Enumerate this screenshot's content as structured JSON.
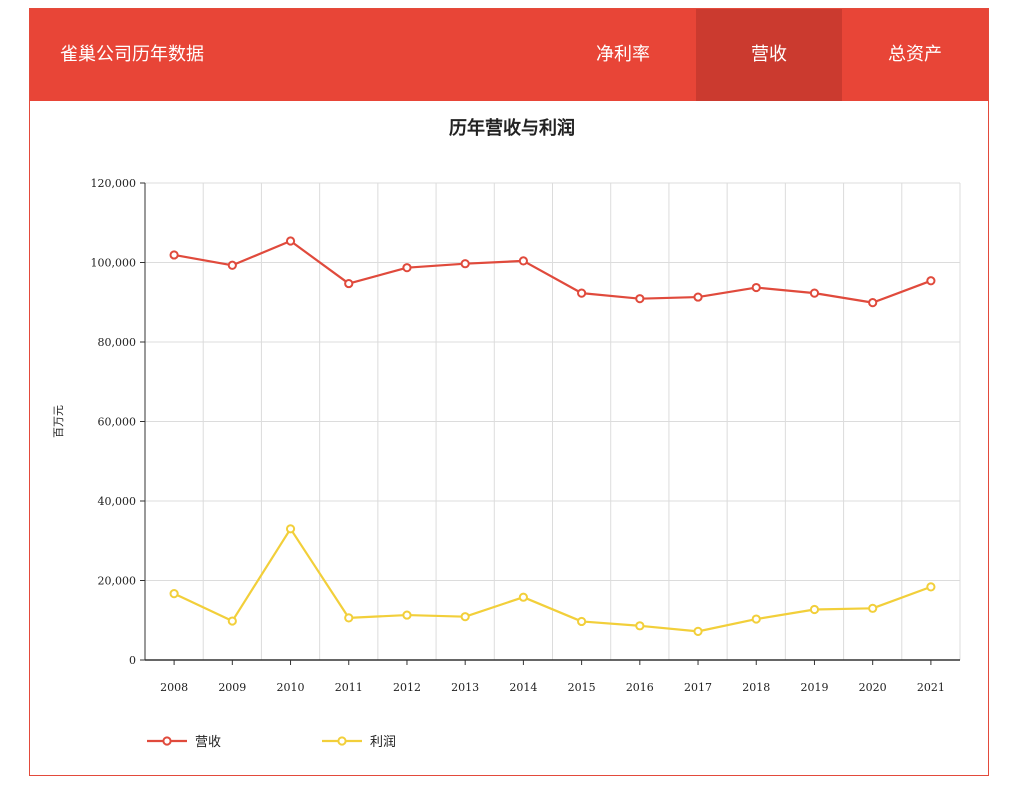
{
  "header": {
    "brand": "雀巢公司历年数据",
    "nav": [
      {
        "label": "净利率",
        "active": false
      },
      {
        "label": "营收",
        "active": true
      },
      {
        "label": "总资产",
        "active": false
      }
    ]
  },
  "colors": {
    "header_bg": "#e84537",
    "nav_active": "#cb3a2f",
    "revenue": "#e04a3c",
    "profit": "#f2cf3a"
  },
  "chart_data": {
    "type": "line",
    "title": "历年营收与利润",
    "ylabel": "百万元",
    "xlabel": "",
    "ylim": [
      0,
      120000
    ],
    "yticks": [
      0,
      20000,
      40000,
      60000,
      80000,
      100000,
      120000
    ],
    "ytick_labels": [
      "0",
      "20,000",
      "40,000",
      "60,000",
      "80,000",
      "100,000",
      "120,000"
    ],
    "categories": [
      "2008",
      "2009",
      "2010",
      "2011",
      "2012",
      "2013",
      "2014",
      "2015",
      "2016",
      "2017",
      "2018",
      "2019",
      "2020",
      "2021"
    ],
    "grid": true,
    "legend_position": "bottom-left",
    "series": [
      {
        "name": "营收",
        "color": "#e04a3c",
        "values": [
          101900,
          99300,
          105400,
          94700,
          98700,
          99700,
          100400,
          92300,
          90900,
          91300,
          93700,
          92300,
          89900,
          95400
        ]
      },
      {
        "name": "利润",
        "color": "#f2cf3a",
        "values": [
          16700,
          9800,
          33000,
          10600,
          11300,
          10900,
          15800,
          9700,
          8600,
          7200,
          10300,
          12700,
          13000,
          18400
        ]
      }
    ]
  }
}
